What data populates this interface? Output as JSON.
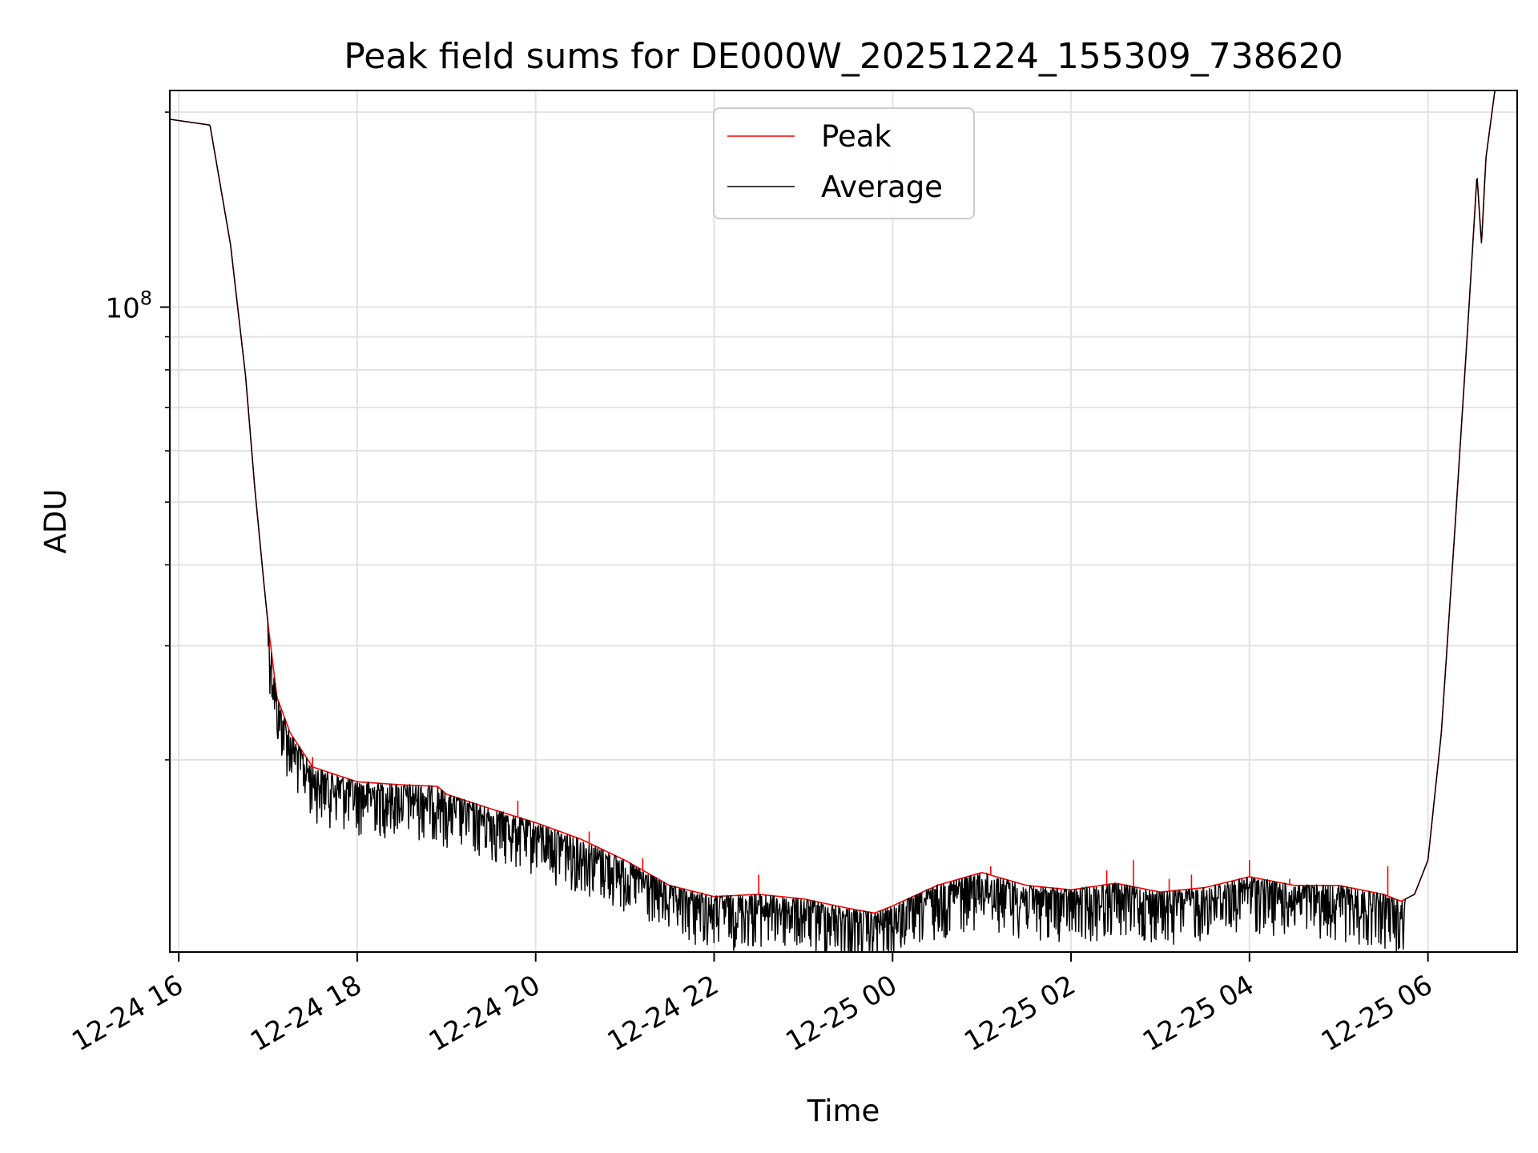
{
  "chart_data": {
    "type": "line",
    "title": "Peak field sums for DE000W_20251224_155309_738620",
    "xlabel": "Time",
    "ylabel": "ADU",
    "yscale": "log",
    "x_unit": "hours since 2025-12-24 16:00",
    "xlim": [
      -0.1,
      15.0
    ],
    "ylim": [
      10100000,
      216000000
    ],
    "grid": true,
    "legend_position": "upper center",
    "x_ticks": [
      {
        "value": 0,
        "label": "12-24 16"
      },
      {
        "value": 2,
        "label": "12-24 18"
      },
      {
        "value": 4,
        "label": "12-24 20"
      },
      {
        "value": 6,
        "label": "12-24 22"
      },
      {
        "value": 8,
        "label": "12-25 00"
      },
      {
        "value": 10,
        "label": "12-25 02"
      },
      {
        "value": 12,
        "label": "12-25 04"
      },
      {
        "value": 14,
        "label": "12-25 06"
      }
    ],
    "y_major_ticks": [
      {
        "value": 100000000,
        "base": "10",
        "exp": "8"
      }
    ],
    "y_minor_ticks": [
      20000000,
      30000000,
      40000000,
      50000000,
      60000000,
      70000000,
      80000000,
      90000000,
      200000000
    ],
    "series": [
      {
        "name": "Peak",
        "color": "#ff0000",
        "x": [
          -0.1,
          0.35,
          0.58,
          0.75,
          0.85,
          0.95,
          1.0,
          1.1,
          1.25,
          1.5,
          2.0,
          2.5,
          2.9,
          3.0,
          3.5,
          4.0,
          4.5,
          5.0,
          5.5,
          6.0,
          6.5,
          7.0,
          7.5,
          7.8,
          8.0,
          8.5,
          9.0,
          9.5,
          10.0,
          10.5,
          11.0,
          11.5,
          12.0,
          12.5,
          13.0,
          13.5,
          13.7,
          13.85,
          14.0,
          14.15,
          14.3,
          14.45,
          14.55,
          14.6,
          14.65,
          14.75,
          15.0
        ],
        "y": [
          195000000,
          191000000,
          125000000,
          78000000,
          53000000,
          38000000,
          32500000,
          25000000,
          22000000,
          19500000,
          18500000,
          18300000,
          18200000,
          17700000,
          16800000,
          16000000,
          15100000,
          14000000,
          12800000,
          12300000,
          12400000,
          12200000,
          11800000,
          11600000,
          11900000,
          12800000,
          13400000,
          12800000,
          12600000,
          12900000,
          12500000,
          12700000,
          13200000,
          12800000,
          12800000,
          12400000,
          12100000,
          12400000,
          14000000,
          22000000,
          45000000,
          95000000,
          160000000,
          125000000,
          170000000,
          216000000,
          216000000
        ],
        "spikes": [
          {
            "x": 1.5,
            "y": 20200000
          },
          {
            "x": 3.8,
            "y": 17300000
          },
          {
            "x": 4.6,
            "y": 15500000
          },
          {
            "x": 5.2,
            "y": 14100000
          },
          {
            "x": 6.5,
            "y": 13300000
          },
          {
            "x": 9.1,
            "y": 13700000
          },
          {
            "x": 10.4,
            "y": 13500000
          },
          {
            "x": 10.7,
            "y": 14000000
          },
          {
            "x": 11.1,
            "y": 13100000
          },
          {
            "x": 11.35,
            "y": 13300000
          },
          {
            "x": 12.0,
            "y": 14000000
          },
          {
            "x": 12.45,
            "y": 13100000
          },
          {
            "x": 13.55,
            "y": 13700000
          }
        ]
      },
      {
        "name": "Average",
        "color": "#000000",
        "x": [
          -0.1,
          0.35,
          0.58,
          0.75,
          0.85,
          0.95,
          1.0,
          1.1,
          1.25,
          1.5,
          2.0,
          2.5,
          2.9,
          3.0,
          3.5,
          4.0,
          4.5,
          5.0,
          5.5,
          6.0,
          6.5,
          7.0,
          7.5,
          7.8,
          8.0,
          8.5,
          9.0,
          9.5,
          10.0,
          10.5,
          11.0,
          11.5,
          12.0,
          12.5,
          13.0,
          13.5,
          13.7,
          13.85,
          14.0,
          14.15,
          14.3,
          14.45,
          14.55,
          14.6,
          14.65,
          14.75,
          15.0
        ],
        "y": [
          195000000,
          191000000,
          125000000,
          78000000,
          53000000,
          38000000,
          32500000,
          25000000,
          22000000,
          19500000,
          18500000,
          18300000,
          18200000,
          17700000,
          16800000,
          16000000,
          15100000,
          14000000,
          12800000,
          12300000,
          12400000,
          12200000,
          11800000,
          11600000,
          11900000,
          12800000,
          13400000,
          12800000,
          12600000,
          12900000,
          12500000,
          12700000,
          13200000,
          12800000,
          12800000,
          12400000,
          12100000,
          12400000,
          14000000,
          22000000,
          45000000,
          95000000,
          160000000,
          125000000,
          170000000,
          216000000,
          216000000
        ],
        "noise_range": {
          "x_start": 1.0,
          "x_end": 13.75,
          "max_dip_fraction": 0.18
        }
      }
    ]
  }
}
